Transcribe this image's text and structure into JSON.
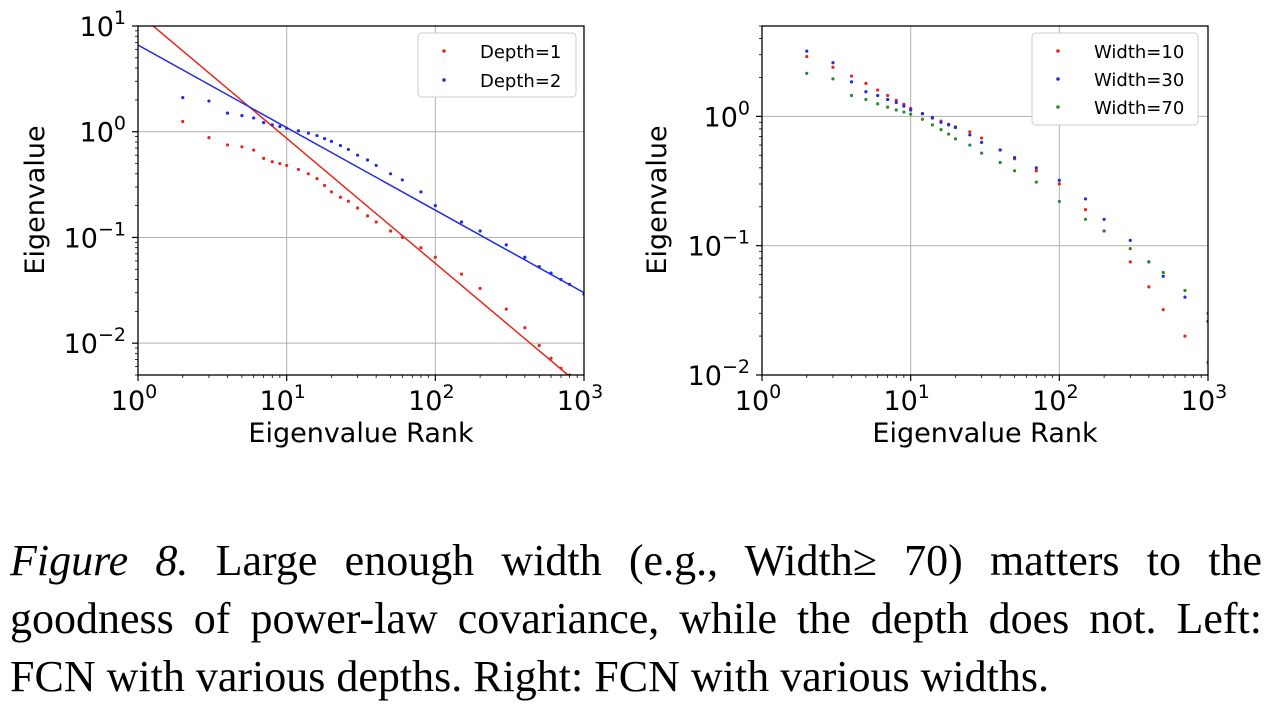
{
  "chart_data": [
    {
      "type": "scatter",
      "xscale": "log",
      "yscale": "log",
      "xlabel": "Eigenvalue Rank",
      "ylabel": "Eigenvalue",
      "xlim": [
        1,
        1000
      ],
      "ylim": [
        0.005,
        10
      ],
      "xticks": [
        {
          "base": "10",
          "exp": "0"
        },
        {
          "base": "10",
          "exp": "1"
        },
        {
          "base": "10",
          "exp": "2"
        },
        {
          "base": "10",
          "exp": "3"
        }
      ],
      "yticks": [
        {
          "base": "10",
          "exp": "1"
        },
        {
          "base": "10",
          "exp": "0"
        },
        {
          "base": "10",
          "exp": "−1"
        },
        {
          "base": "10",
          "exp": "−2"
        }
      ],
      "grid": true,
      "legend_position": "top-right",
      "series": [
        {
          "name": "Depth=1",
          "color": "#e8261e",
          "points": [
            [
              2,
              1.25
            ],
            [
              3,
              0.88
            ],
            [
              4,
              0.75
            ],
            [
              5,
              0.72
            ],
            [
              6,
              0.67
            ],
            [
              7,
              0.56
            ],
            [
              8,
              0.52
            ],
            [
              9,
              0.5
            ],
            [
              10,
              0.48
            ],
            [
              12,
              0.44
            ],
            [
              14,
              0.4
            ],
            [
              16,
              0.36
            ],
            [
              18,
              0.31
            ],
            [
              20,
              0.27
            ],
            [
              23,
              0.24
            ],
            [
              26,
              0.22
            ],
            [
              30,
              0.19
            ],
            [
              35,
              0.16
            ],
            [
              40,
              0.14
            ],
            [
              50,
              0.115
            ],
            [
              60,
              0.1
            ],
            [
              80,
              0.08
            ],
            [
              100,
              0.065
            ],
            [
              150,
              0.045
            ],
            [
              200,
              0.033
            ],
            [
              300,
              0.021
            ],
            [
              400,
              0.014
            ],
            [
              500,
              0.0095
            ],
            [
              600,
              0.0072
            ],
            [
              700,
              0.0058
            ],
            [
              800,
              0.005
            ]
          ],
          "fit": {
            "x1": 1,
            "y1": 13.2,
            "x2": 780,
            "y2": 0.005
          }
        },
        {
          "name": "Depth=2",
          "color": "#1f2be6",
          "points": [
            [
              2,
              2.1
            ],
            [
              3,
              1.95
            ],
            [
              4,
              1.5
            ],
            [
              5,
              1.42
            ],
            [
              6,
              1.35
            ],
            [
              7,
              1.22
            ],
            [
              8,
              1.16
            ],
            [
              9,
              1.12
            ],
            [
              10,
              1.08
            ],
            [
              12,
              1.02
            ],
            [
              14,
              0.97
            ],
            [
              16,
              0.92
            ],
            [
              18,
              0.86
            ],
            [
              20,
              0.81
            ],
            [
              23,
              0.74
            ],
            [
              26,
              0.68
            ],
            [
              30,
              0.6
            ],
            [
              35,
              0.54
            ],
            [
              40,
              0.48
            ],
            [
              50,
              0.4
            ],
            [
              60,
              0.35
            ],
            [
              80,
              0.27
            ],
            [
              100,
              0.2
            ],
            [
              150,
              0.14
            ],
            [
              200,
              0.115
            ],
            [
              300,
              0.085
            ],
            [
              400,
              0.065
            ],
            [
              500,
              0.053
            ],
            [
              600,
              0.046
            ],
            [
              700,
              0.04
            ],
            [
              800,
              0.036
            ],
            [
              1000,
              0.029
            ]
          ],
          "fit": {
            "x1": 1,
            "y1": 6.6,
            "x2": 1000,
            "y2": 0.03
          }
        }
      ]
    },
    {
      "type": "scatter",
      "xscale": "log",
      "yscale": "log",
      "xlabel": "Eigenvalue Rank",
      "ylabel": "Eigenvalue",
      "xlim": [
        1,
        1000
      ],
      "ylim": [
        0.01,
        5
      ],
      "xticks": [
        {
          "base": "10",
          "exp": "0"
        },
        {
          "base": "10",
          "exp": "1"
        },
        {
          "base": "10",
          "exp": "2"
        },
        {
          "base": "10",
          "exp": "3"
        }
      ],
      "yticks": [
        {
          "base": "10",
          "exp": "0"
        },
        {
          "base": "10",
          "exp": "−1"
        },
        {
          "base": "10",
          "exp": "−2"
        }
      ],
      "grid": true,
      "legend_position": "top-right",
      "series": [
        {
          "name": "Width=10",
          "color": "#e8261e",
          "points": [
            [
              2,
              2.9
            ],
            [
              3,
              2.4
            ],
            [
              4,
              2.05
            ],
            [
              5,
              1.8
            ],
            [
              6,
              1.6
            ],
            [
              7,
              1.45
            ],
            [
              8,
              1.33
            ],
            [
              9,
              1.24
            ],
            [
              10,
              1.15
            ],
            [
              12,
              1.05
            ],
            [
              14,
              0.97
            ],
            [
              16,
              0.92
            ],
            [
              18,
              0.87
            ],
            [
              20,
              0.83
            ],
            [
              25,
              0.76
            ],
            [
              30,
              0.68
            ],
            [
              40,
              0.55
            ],
            [
              50,
              0.47
            ],
            [
              70,
              0.38
            ],
            [
              100,
              0.3
            ],
            [
              150,
              0.19
            ],
            [
              200,
              0.13
            ],
            [
              300,
              0.075
            ],
            [
              400,
              0.048
            ],
            [
              500,
              0.032
            ],
            [
              700,
              0.02
            ],
            [
              1000,
              0.0125
            ]
          ]
        },
        {
          "name": "Width=30",
          "color": "#1f2be6",
          "points": [
            [
              2,
              3.2
            ],
            [
              3,
              2.6
            ],
            [
              4,
              1.85
            ],
            [
              5,
              1.55
            ],
            [
              6,
              1.45
            ],
            [
              7,
              1.35
            ],
            [
              8,
              1.28
            ],
            [
              9,
              1.2
            ],
            [
              10,
              1.12
            ],
            [
              12,
              1.05
            ],
            [
              14,
              0.98
            ],
            [
              16,
              0.9
            ],
            [
              18,
              0.86
            ],
            [
              20,
              0.82
            ],
            [
              25,
              0.72
            ],
            [
              30,
              0.63
            ],
            [
              40,
              0.55
            ],
            [
              50,
              0.48
            ],
            [
              70,
              0.4
            ],
            [
              100,
              0.32
            ],
            [
              150,
              0.23
            ],
            [
              200,
              0.16
            ],
            [
              300,
              0.11
            ],
            [
              400,
              0.075
            ],
            [
              500,
              0.058
            ],
            [
              700,
              0.04
            ],
            [
              1000,
              0.026
            ]
          ]
        },
        {
          "name": "Width=70",
          "color": "#2a8a2a",
          "points": [
            [
              2,
              2.15
            ],
            [
              3,
              1.95
            ],
            [
              4,
              1.45
            ],
            [
              5,
              1.35
            ],
            [
              6,
              1.25
            ],
            [
              7,
              1.18
            ],
            [
              8,
              1.12
            ],
            [
              9,
              1.08
            ],
            [
              10,
              1.04
            ],
            [
              12,
              0.95
            ],
            [
              14,
              0.86
            ],
            [
              16,
              0.79
            ],
            [
              18,
              0.73
            ],
            [
              20,
              0.67
            ],
            [
              25,
              0.6
            ],
            [
              30,
              0.52
            ],
            [
              40,
              0.44
            ],
            [
              50,
              0.38
            ],
            [
              70,
              0.31
            ],
            [
              100,
              0.22
            ],
            [
              150,
              0.16
            ],
            [
              200,
              0.13
            ],
            [
              300,
              0.095
            ],
            [
              400,
              0.075
            ],
            [
              500,
              0.062
            ],
            [
              700,
              0.045
            ],
            [
              1000,
              0.03
            ]
          ]
        }
      ]
    }
  ],
  "caption": {
    "label": "Figure 8.",
    "text": "Large enough width (e.g., Width≥ 70) matters to the goodness of power-law covariance, while the depth does not. Left: FCN with various depths. Right: FCN with various widths."
  }
}
